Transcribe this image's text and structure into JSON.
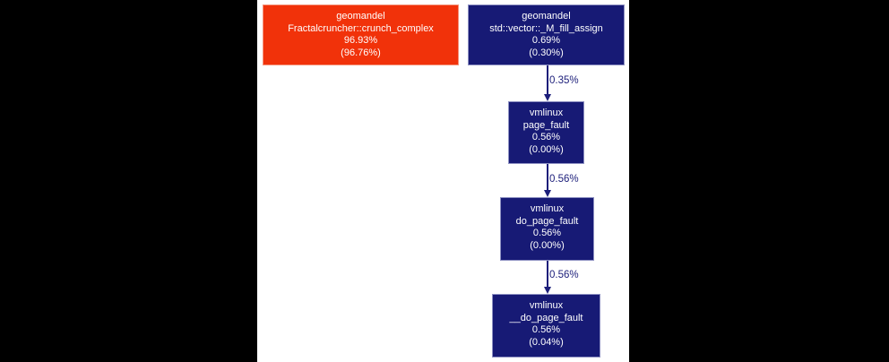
{
  "palette": {
    "page_background": "#000000",
    "panel_background": "#ffffff",
    "hot_node": "#f1320a",
    "cold_node": "#171a75",
    "edge_color": "#1c1e7a",
    "node_text": "#ffffff"
  },
  "nodes": [
    {
      "module": "geomandel",
      "function": "Fractalcruncher::crunch_complex",
      "total_pct": "96.93%",
      "self_pct": "(96.76%)",
      "heat": "hot"
    },
    {
      "module": "geomandel",
      "function": "std::vector::_M_fill_assign",
      "total_pct": "0.69%",
      "self_pct": "(0.30%)",
      "heat": "cold"
    },
    {
      "module": "vmlinux",
      "function": "page_fault",
      "total_pct": "0.56%",
      "self_pct": "(0.00%)",
      "heat": "cold"
    },
    {
      "module": "vmlinux",
      "function": "do_page_fault",
      "total_pct": "0.56%",
      "self_pct": "(0.00%)",
      "heat": "cold"
    },
    {
      "module": "vmlinux",
      "function": "__do_page_fault",
      "total_pct": "0.56%",
      "self_pct": "(0.04%)",
      "heat": "cold"
    }
  ],
  "edges": [
    {
      "label": "0.35%",
      "from": "std::vector::_M_fill_assign",
      "to": "page_fault"
    },
    {
      "label": "0.56%",
      "from": "page_fault",
      "to": "do_page_fault"
    },
    {
      "label": "0.56%",
      "from": "do_page_fault",
      "to": "__do_page_fault"
    }
  ]
}
